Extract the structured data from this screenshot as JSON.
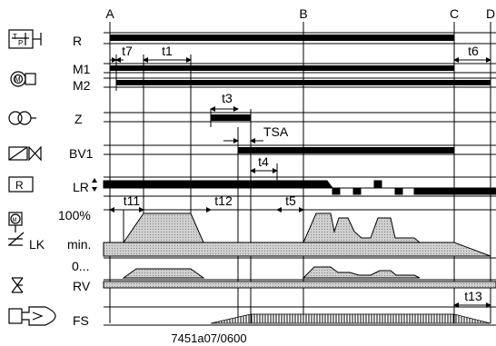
{
  "diagram": {
    "columns": {
      "a": "A",
      "b": "B",
      "c": "C",
      "d": "D"
    },
    "signals": {
      "r": "R",
      "m1": "M1",
      "m2": "M2",
      "z": "Z",
      "bv1": "BV1",
      "lr": "LR",
      "pct100": "100%",
      "lk": "LK",
      "min": "min.",
      "zero": "0...",
      "rv": "RV",
      "fs": "FS"
    },
    "timers": {
      "t7": "t7",
      "t1": "t1",
      "t6": "t6",
      "t3": "t3",
      "tsa": "TSA",
      "t4": "t4",
      "t11": "t11",
      "t12": "t12",
      "t5": "t5",
      "t13": "t13"
    },
    "code": "7451a07/0600"
  }
}
